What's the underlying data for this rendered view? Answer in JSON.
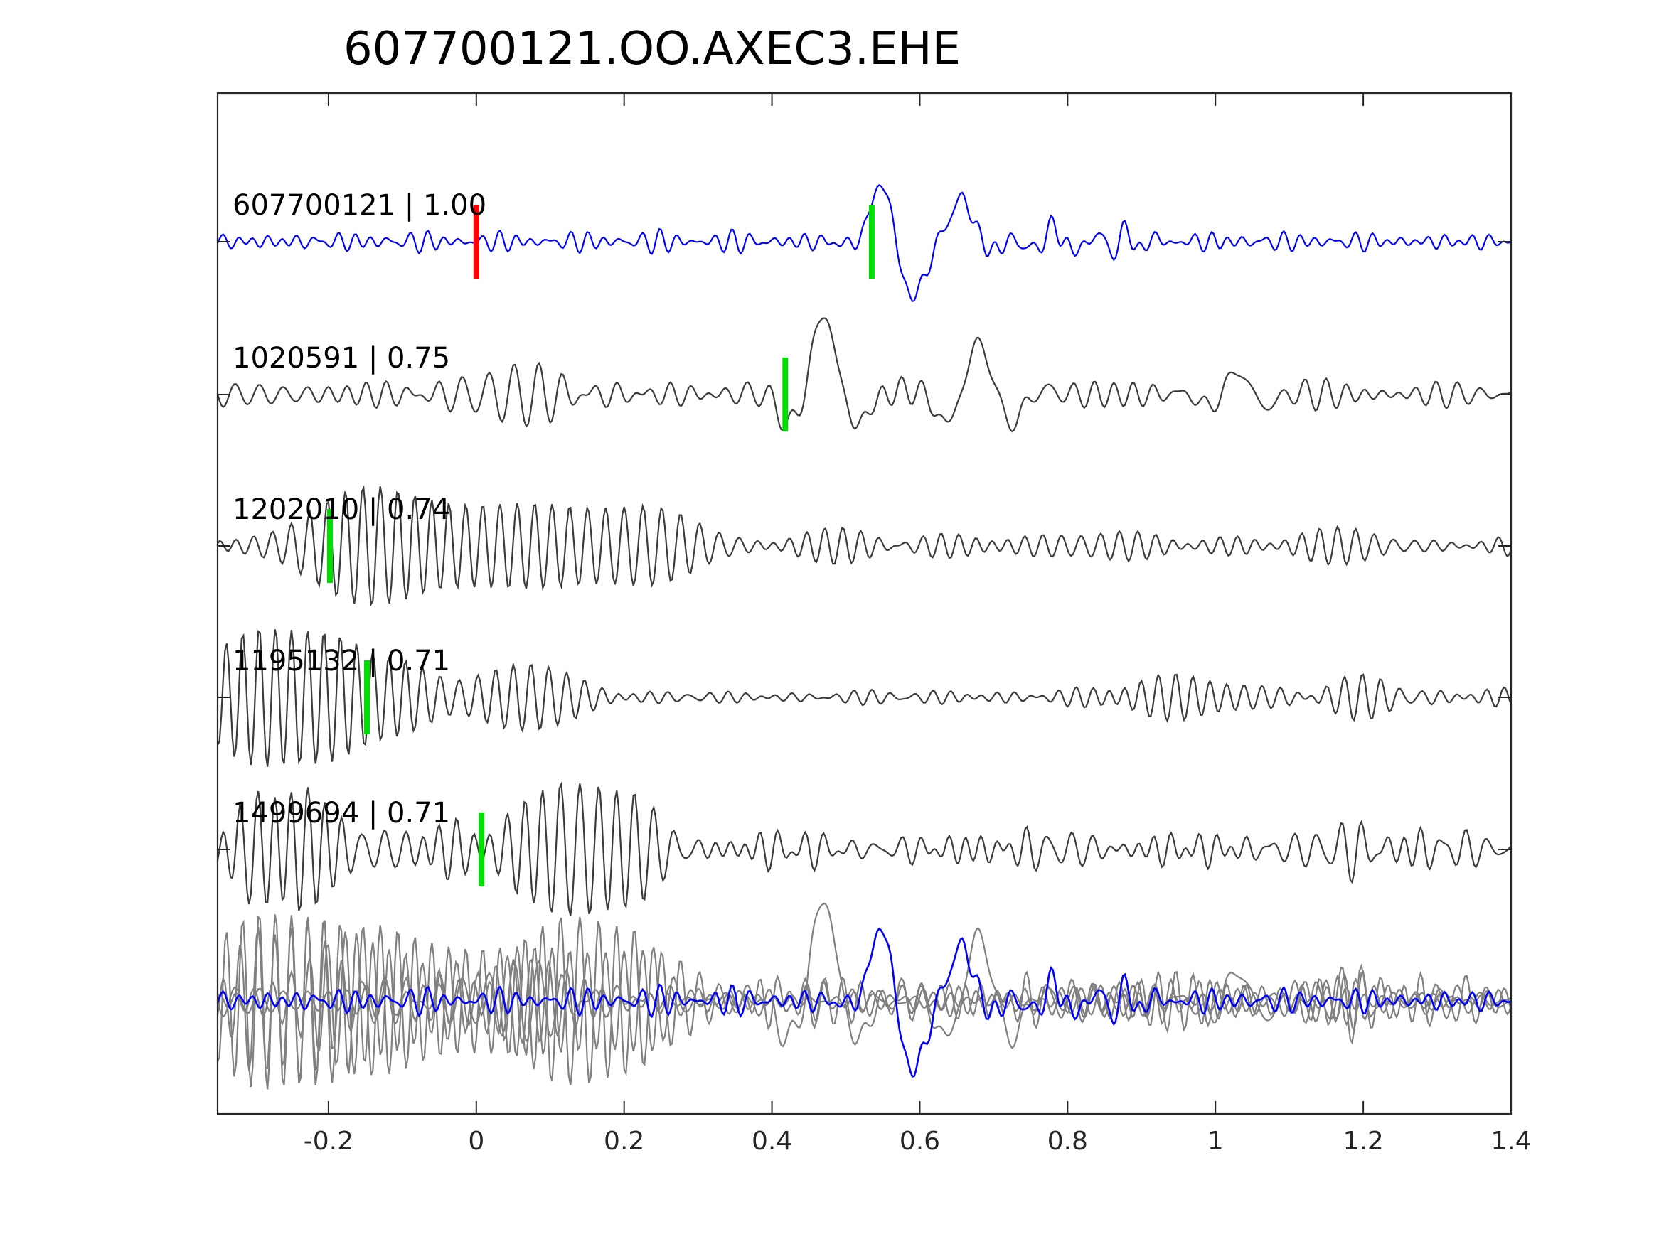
{
  "chart_data": {
    "type": "line",
    "title": "607700121.OO.AXEC3.EHE",
    "xlabel": "",
    "ylabel": "",
    "xlim": [
      -0.35,
      1.4
    ],
    "xticks": [
      -0.2,
      0,
      0.2,
      0.4,
      0.6,
      0.8,
      1,
      1.2,
      1.4
    ],
    "xtick_labels": [
      "-0.2",
      "0",
      "0.2",
      "0.4",
      "0.6",
      "0.8",
      "1",
      "1.2",
      "1.4"
    ],
    "grid": false,
    "legend": "none",
    "colors": {
      "reference": "#0000ff",
      "neighbor": "#3c3c3c",
      "overlay": "#808080",
      "origin_pick": "#ff0000",
      "phase_pick": "#00dd00",
      "axes": "#262626"
    },
    "traces": [
      {
        "id": "607700121",
        "cc": "1.00",
        "label": "607700121 | 1.00",
        "role": "reference",
        "origin_pick_x": 0.0,
        "phase_pick_x": 0.535,
        "noise_amp": 0.09,
        "noise_period": 0.025,
        "wavelets": [
          {
            "t0": 0.59,
            "amp": -0.65,
            "period": 0.12,
            "width": 0.05
          },
          {
            "t0": 0.55,
            "amp": 0.55,
            "period": 0.12,
            "width": 0.03
          },
          {
            "t0": 0.66,
            "amp": 0.45,
            "period": 0.1,
            "width": 0.035
          },
          {
            "t0": 0.78,
            "amp": 0.18,
            "period": 0.06,
            "width": 0.04
          },
          {
            "t0": 0.88,
            "amp": 0.15,
            "period": 0.04,
            "width": 0.05
          }
        ]
      },
      {
        "id": "1020591",
        "cc": "0.75",
        "label": "1020591 | 0.75",
        "role": "neighbor",
        "phase_pick_x": 0.418,
        "noise_amp": 0.12,
        "noise_period": 0.028,
        "wavelets": [
          {
            "t0": 0.47,
            "amp": 1.0,
            "period": 0.11,
            "width": 0.05
          },
          {
            "t0": 0.68,
            "amp": 0.65,
            "period": 0.1,
            "width": 0.06
          },
          {
            "t0": 1.03,
            "amp": 0.3,
            "period": 0.09,
            "width": 0.05
          },
          {
            "t0": 0.05,
            "amp": 0.25,
            "period": 0.035,
            "width": 0.12
          }
        ]
      },
      {
        "id": "1202010",
        "cc": "0.74",
        "label": "1202010 | 0.74",
        "role": "neighbor",
        "phase_pick_x": -0.198,
        "noise_amp": 0.15,
        "noise_period": 0.025,
        "wavelets": [
          {
            "t0": -0.13,
            "amp": 0.85,
            "period": 0.024,
            "width": 0.11
          },
          {
            "t0": 0.08,
            "amp": 0.6,
            "period": 0.024,
            "width": 0.12
          },
          {
            "t0": 0.25,
            "amp": 0.3,
            "period": 0.026,
            "width": 0.1
          }
        ]
      },
      {
        "id": "1195132",
        "cc": "0.71",
        "label": "1195132 | 0.71",
        "role": "neighbor",
        "phase_pick_x": -0.148,
        "noise_amp": 0.06,
        "noise_period": 0.025,
        "wavelets": [
          {
            "t0": -0.25,
            "amp": 0.9,
            "period": 0.022,
            "width": 0.17
          },
          {
            "t0": 0.05,
            "amp": 0.5,
            "period": 0.024,
            "width": 0.1
          },
          {
            "t0": 0.97,
            "amp": 0.3,
            "period": 0.023,
            "width": 0.1
          },
          {
            "t0": 1.2,
            "amp": 0.22,
            "period": 0.025,
            "width": 0.08
          }
        ]
      },
      {
        "id": "1499694",
        "cc": "0.71",
        "label": "1499694 | 0.71",
        "role": "neighbor",
        "phase_pick_x": 0.007,
        "noise_amp": 0.16,
        "noise_period": 0.026,
        "wavelets": [
          {
            "t0": -0.25,
            "amp": 0.75,
            "period": 0.023,
            "width": 0.09
          },
          {
            "t0": 0.14,
            "amp": 0.95,
            "period": 0.025,
            "width": 0.1
          },
          {
            "t0": -0.05,
            "amp": 0.45,
            "period": 0.024,
            "width": 0.06
          },
          {
            "t0": 1.2,
            "amp": 0.25,
            "period": 0.03,
            "width": 0.05
          }
        ]
      }
    ],
    "stack": {
      "label": "",
      "note_color_reference": "#0000ff",
      "note_color_others": "#808080"
    }
  }
}
